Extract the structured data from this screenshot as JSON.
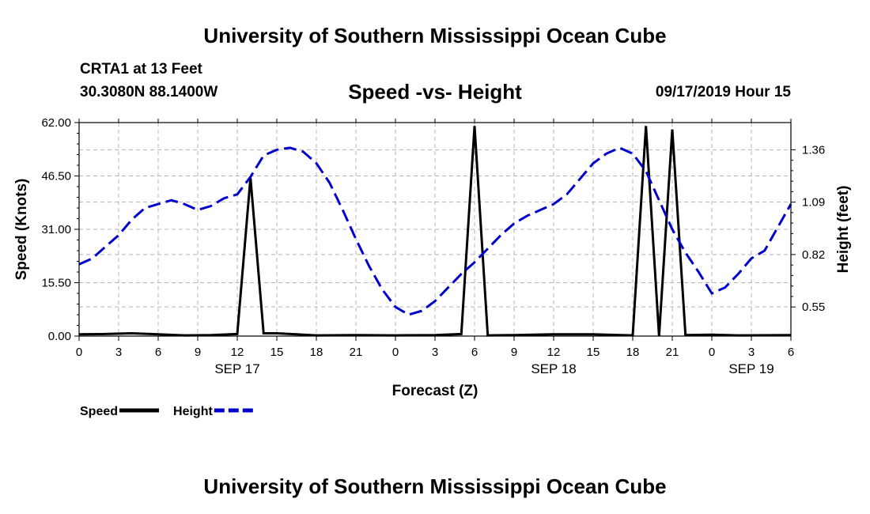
{
  "header": {
    "title": "University of Southern Mississippi Ocean Cube",
    "station": "CRTA1 at 13 Feet",
    "coordinates": "30.3080N 88.1400W",
    "timestamp": "09/17/2019 Hour 15"
  },
  "footer": {
    "title": "University of Southern Mississippi Ocean Cube"
  },
  "chart_data": {
    "type": "line",
    "title": "Speed -vs- Height",
    "xlabel": "Forecast (Z)",
    "ylabel": "Speed (Knots)",
    "y2label": "Height (feet)",
    "x_unit": "hours from SEP 17 00Z",
    "xlim": [
      0,
      54
    ],
    "ylim": [
      0,
      62
    ],
    "y2lim": [
      0.4,
      1.5
    ],
    "grid": true,
    "x_ticks": [
      {
        "x": 0,
        "label": "0"
      },
      {
        "x": 3,
        "label": "3"
      },
      {
        "x": 6,
        "label": "6"
      },
      {
        "x": 9,
        "label": "9"
      },
      {
        "x": 12,
        "label": "12"
      },
      {
        "x": 15,
        "label": "15"
      },
      {
        "x": 18,
        "label": "18"
      },
      {
        "x": 21,
        "label": "21"
      },
      {
        "x": 24,
        "label": "0"
      },
      {
        "x": 27,
        "label": "3"
      },
      {
        "x": 30,
        "label": "6"
      },
      {
        "x": 33,
        "label": "9"
      },
      {
        "x": 36,
        "label": "12"
      },
      {
        "x": 39,
        "label": "15"
      },
      {
        "x": 42,
        "label": "18"
      },
      {
        "x": 45,
        "label": "21"
      },
      {
        "x": 48,
        "label": "0"
      },
      {
        "x": 51,
        "label": "3"
      },
      {
        "x": 54,
        "label": "6"
      }
    ],
    "date_labels": [
      {
        "x": 12,
        "label": "SEP 17"
      },
      {
        "x": 36,
        "label": "SEP 18"
      },
      {
        "x": 51,
        "label": "SEP 19"
      }
    ],
    "y_ticks": [
      {
        "value": 0,
        "label": "0.00"
      },
      {
        "value": 15.5,
        "label": "15.50"
      },
      {
        "value": 31,
        "label": "31.00"
      },
      {
        "value": 46.5,
        "label": "46.50"
      },
      {
        "value": 62,
        "label": "62.00"
      }
    ],
    "y2_ticks": [
      {
        "value": 0.55,
        "label": "0.55"
      },
      {
        "value": 0.82,
        "label": "0.82"
      },
      {
        "value": 1.09,
        "label": "1.09"
      },
      {
        "value": 1.36,
        "label": "1.36"
      }
    ],
    "series": [
      {
        "name": "Speed",
        "axis": "left",
        "color": "#000000",
        "style": "solid",
        "points": [
          [
            0,
            0.5
          ],
          [
            2,
            0.6
          ],
          [
            4,
            0.8
          ],
          [
            6,
            0.5
          ],
          [
            8,
            0.2
          ],
          [
            10,
            0.3
          ],
          [
            12,
            0.6
          ],
          [
            13,
            46
          ],
          [
            14,
            0.8
          ],
          [
            15,
            0.8
          ],
          [
            18,
            0.2
          ],
          [
            21,
            0.3
          ],
          [
            24,
            0.2
          ],
          [
            27,
            0.3
          ],
          [
            29,
            0.6
          ],
          [
            30,
            61
          ],
          [
            31,
            0.2
          ],
          [
            33,
            0.3
          ],
          [
            36,
            0.5
          ],
          [
            39,
            0.5
          ],
          [
            42,
            0.2
          ],
          [
            43,
            61
          ],
          [
            44,
            0
          ],
          [
            45,
            60
          ],
          [
            46,
            0.3
          ],
          [
            48,
            0.4
          ],
          [
            50,
            0.2
          ],
          [
            54,
            0.3
          ]
        ]
      },
      {
        "name": "Height",
        "axis": "right",
        "color": "#0000cc",
        "style": "dashed",
        "points": [
          [
            0,
            0.77
          ],
          [
            1,
            0.8
          ],
          [
            2,
            0.86
          ],
          [
            3,
            0.92
          ],
          [
            4,
            1.0
          ],
          [
            5,
            1.06
          ],
          [
            6,
            1.08
          ],
          [
            7,
            1.1
          ],
          [
            8,
            1.08
          ],
          [
            9,
            1.05
          ],
          [
            10,
            1.07
          ],
          [
            11,
            1.11
          ],
          [
            12,
            1.13
          ],
          [
            13,
            1.22
          ],
          [
            14,
            1.33
          ],
          [
            15,
            1.36
          ],
          [
            16,
            1.37
          ],
          [
            17,
            1.35
          ],
          [
            18,
            1.29
          ],
          [
            19,
            1.19
          ],
          [
            20,
            1.05
          ],
          [
            21,
            0.9
          ],
          [
            22,
            0.76
          ],
          [
            23,
            0.64
          ],
          [
            24,
            0.55
          ],
          [
            25,
            0.51
          ],
          [
            26,
            0.53
          ],
          [
            27,
            0.58
          ],
          [
            28,
            0.65
          ],
          [
            29,
            0.72
          ],
          [
            30,
            0.78
          ],
          [
            31,
            0.85
          ],
          [
            32,
            0.92
          ],
          [
            33,
            0.98
          ],
          [
            34,
            1.02
          ],
          [
            35,
            1.05
          ],
          [
            36,
            1.08
          ],
          [
            37,
            1.13
          ],
          [
            38,
            1.21
          ],
          [
            39,
            1.29
          ],
          [
            40,
            1.34
          ],
          [
            41,
            1.37
          ],
          [
            42,
            1.34
          ],
          [
            43,
            1.25
          ],
          [
            44,
            1.1
          ],
          [
            45,
            0.95
          ],
          [
            46,
            0.83
          ],
          [
            47,
            0.73
          ],
          [
            48,
            0.62
          ],
          [
            49,
            0.65
          ],
          [
            50,
            0.72
          ],
          [
            51,
            0.8
          ],
          [
            52,
            0.84
          ],
          [
            53,
            0.96
          ],
          [
            54,
            1.08
          ]
        ]
      }
    ],
    "legend": [
      {
        "label": "Speed",
        "color": "#000000",
        "style": "solid"
      },
      {
        "label": "Height",
        "color": "#0000cc",
        "style": "dashed"
      }
    ],
    "legend_position": "bottom-left"
  }
}
